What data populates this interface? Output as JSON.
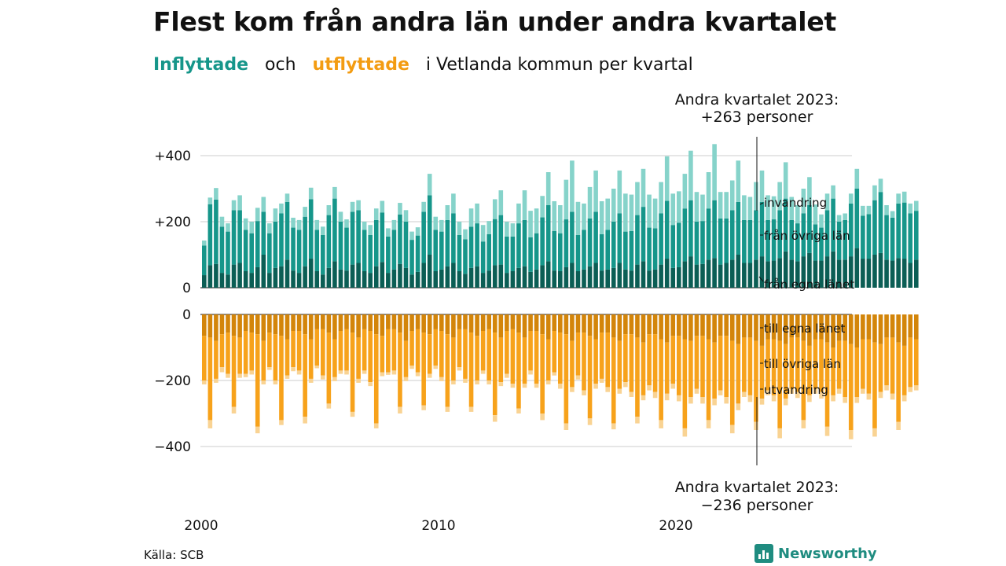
{
  "title": "Flest kom från andra län under andra kvartalet",
  "subtitle": {
    "in_label": "Inflyttade",
    "and": "och",
    "out_label": "utflyttade",
    "rest": "i Vetlanda  kommun  per  kvartal"
  },
  "annotations": {
    "top_line1": "Andra kvartalet 2023:",
    "top_line2": "+263 personer",
    "bottom_line1": "Andra kvartalet 2023:",
    "bottom_line2": "−236 personer"
  },
  "source": "Källa: SCB",
  "brand": "Newsworthy",
  "colors": {
    "in_same": "#0b5e55",
    "in_other": "#16968a",
    "in_immig": "#86d3ca",
    "out_same": "#d3850a",
    "out_other": "#f7a21b",
    "out_emig": "#f9d393",
    "grid": "#dddddd"
  },
  "chart_data": {
    "type": "bar",
    "stacked": true,
    "x_start": "2000 Q1",
    "x_ticks": [
      "2000",
      "2010",
      "2020"
    ],
    "top_axis": {
      "ticks": [
        "0",
        "+200",
        "+400"
      ],
      "ylim": [
        0,
        400
      ]
    },
    "bottom_axis": {
      "ticks": [
        "0",
        "−200",
        "−400"
      ],
      "ylim": [
        -400,
        0
      ]
    },
    "series_labels": {
      "in_immig": "invandring",
      "in_other": "från övriga län",
      "in_same": "från egna länet",
      "out_same": "till egna länet",
      "out_other": "till övriga län",
      "out_emig": "utvandring"
    },
    "inflow_same_county": [
      38,
      68,
      72,
      45,
      40,
      70,
      75,
      50,
      45,
      62,
      100,
      45,
      60,
      65,
      85,
      52,
      45,
      65,
      88,
      50,
      40,
      60,
      80,
      55,
      52,
      70,
      75,
      50,
      45,
      65,
      78,
      45,
      55,
      72,
      60,
      40,
      48,
      75,
      100,
      50,
      55,
      65,
      75,
      50,
      42,
      60,
      65,
      45,
      52,
      68,
      70,
      45,
      50,
      60,
      65,
      48,
      55,
      68,
      80,
      52,
      50,
      62,
      75,
      50,
      55,
      65,
      75,
      52,
      55,
      60,
      75,
      55,
      52,
      70,
      80,
      52,
      55,
      70,
      88,
      60,
      62,
      80,
      95,
      70,
      72,
      85,
      90,
      70,
      75,
      85,
      100,
      75,
      75,
      85,
      95,
      80,
      82,
      90,
      110,
      85,
      80,
      95,
      105,
      82,
      82,
      95,
      110,
      85,
      85,
      95,
      120,
      88,
      88,
      100,
      105,
      85,
      82,
      90,
      88,
      75,
      85
    ],
    "inflow_other_county": [
      90,
      185,
      195,
      140,
      130,
      165,
      160,
      125,
      120,
      140,
      130,
      120,
      140,
      160,
      175,
      130,
      130,
      150,
      180,
      125,
      120,
      160,
      190,
      145,
      130,
      160,
      160,
      125,
      115,
      140,
      150,
      110,
      120,
      150,
      140,
      105,
      110,
      155,
      180,
      125,
      115,
      140,
      150,
      110,
      105,
      125,
      130,
      95,
      110,
      140,
      150,
      110,
      105,
      135,
      140,
      105,
      110,
      145,
      170,
      120,
      115,
      145,
      155,
      110,
      120,
      145,
      155,
      110,
      120,
      140,
      150,
      115,
      120,
      150,
      165,
      130,
      125,
      155,
      175,
      130,
      135,
      160,
      170,
      130,
      130,
      155,
      175,
      140,
      135,
      150,
      160,
      130,
      130,
      150,
      165,
      125,
      125,
      145,
      160,
      120,
      115,
      130,
      145,
      110,
      100,
      140,
      160,
      115,
      120,
      160,
      180,
      130,
      135,
      165,
      185,
      135,
      130,
      165,
      170,
      150,
      148
    ],
    "inflow_immigration": [
      15,
      20,
      35,
      30,
      25,
      30,
      45,
      35,
      35,
      40,
      45,
      30,
      40,
      30,
      25,
      30,
      30,
      30,
      35,
      30,
      25,
      30,
      35,
      30,
      25,
      30,
      30,
      25,
      30,
      35,
      35,
      25,
      30,
      35,
      35,
      25,
      25,
      30,
      65,
      40,
      35,
      45,
      60,
      40,
      30,
      55,
      60,
      50,
      40,
      60,
      75,
      45,
      40,
      60,
      90,
      80,
      75,
      65,
      100,
      90,
      85,
      120,
      155,
      100,
      80,
      95,
      125,
      100,
      95,
      100,
      130,
      115,
      110,
      100,
      115,
      100,
      90,
      95,
      135,
      95,
      95,
      105,
      150,
      90,
      80,
      110,
      170,
      80,
      80,
      90,
      125,
      75,
      70,
      85,
      95,
      75,
      70,
      85,
      110,
      70,
      55,
      75,
      85,
      60,
      40,
      50,
      40,
      20,
      20,
      30,
      60,
      30,
      25,
      45,
      40,
      30,
      20,
      30,
      33,
      30,
      30
    ],
    "outflow_same_county": [
      -65,
      -70,
      -80,
      -60,
      -55,
      -65,
      -70,
      -50,
      -55,
      -60,
      -80,
      -55,
      -60,
      -65,
      -75,
      -50,
      -50,
      -60,
      -75,
      -45,
      -45,
      -55,
      -75,
      -50,
      -45,
      -55,
      -70,
      -45,
      -50,
      -60,
      -65,
      -45,
      -45,
      -55,
      -80,
      -50,
      -45,
      -55,
      -60,
      -45,
      -50,
      -60,
      -70,
      -45,
      -45,
      -55,
      -65,
      -50,
      -45,
      -55,
      -70,
      -50,
      -45,
      -55,
      -70,
      -50,
      -50,
      -60,
      -75,
      -50,
      -55,
      -60,
      -80,
      -55,
      -55,
      -65,
      -75,
      -55,
      -55,
      -70,
      -80,
      -60,
      -60,
      -70,
      -85,
      -60,
      -60,
      -75,
      -85,
      -65,
      -65,
      -75,
      -80,
      -65,
      -65,
      -75,
      -85,
      -65,
      -65,
      -80,
      -90,
      -70,
      -70,
      -80,
      -95,
      -75,
      -75,
      -80,
      -90,
      -70,
      -70,
      -80,
      -95,
      -75,
      -75,
      -85,
      -100,
      -80,
      -80,
      -90,
      -100,
      -75,
      -75,
      -85,
      -90,
      -70,
      -70,
      -85,
      -95,
      -70,
      -75
    ],
    "outflow_other_county": [
      -135,
      -250,
      -115,
      -100,
      -125,
      -215,
      -110,
      -130,
      -115,
      -280,
      -120,
      -105,
      -140,
      -255,
      -110,
      -110,
      -120,
      -250,
      -120,
      -110,
      -140,
      -215,
      -115,
      -120,
      -125,
      -240,
      -125,
      -125,
      -155,
      -270,
      -110,
      -130,
      -125,
      -225,
      -110,
      -105,
      -130,
      -220,
      -120,
      -110,
      -140,
      -220,
      -130,
      -115,
      -150,
      -225,
      -135,
      -120,
      -155,
      -250,
      -135,
      -130,
      -165,
      -230,
      -140,
      -120,
      -160,
      -240,
      -125,
      -125,
      -155,
      -270,
      -140,
      -130,
      -175,
      -250,
      -135,
      -140,
      -165,
      -260,
      -145,
      -145,
      -175,
      -240,
      -160,
      -155,
      -175,
      -245,
      -155,
      -145,
      -180,
      -270,
      -170,
      -160,
      -185,
      -245,
      -170,
      -165,
      -185,
      -255,
      -180,
      -165,
      -175,
      -245,
      -160,
      -155,
      -170,
      -265,
      -165,
      -155,
      -165,
      -240,
      -150,
      -150,
      -160,
      -255,
      -145,
      -145,
      -170,
      -260,
      -150,
      -150,
      -165,
      -260,
      -145,
      -145,
      -170,
      -240,
      -150,
      -150,
      -140
    ],
    "outflow_emigration": [
      -12,
      -25,
      -12,
      -15,
      -12,
      -20,
      -12,
      -10,
      -12,
      -20,
      -12,
      -8,
      -12,
      -15,
      -10,
      -12,
      -12,
      -20,
      -12,
      -8,
      -12,
      -15,
      -12,
      -10,
      -12,
      -15,
      -12,
      -10,
      -12,
      -15,
      -12,
      -8,
      -12,
      -20,
      -12,
      -10,
      -12,
      -15,
      -12,
      -10,
      -12,
      -15,
      -12,
      -10,
      -12,
      -15,
      -12,
      -10,
      -12,
      -20,
      -12,
      -12,
      -12,
      -15,
      -12,
      -12,
      -12,
      -20,
      -12,
      -10,
      -15,
      -20,
      -15,
      -12,
      -15,
      -20,
      -15,
      -12,
      -15,
      -18,
      -15,
      -15,
      -15,
      -20,
      -15,
      -15,
      -18,
      -25,
      -20,
      -15,
      -18,
      -25,
      -20,
      -15,
      -20,
      -25,
      -20,
      -15,
      -20,
      -25,
      -20,
      -15,
      -20,
      -25,
      -18,
      -15,
      -18,
      -30,
      -20,
      -15,
      -18,
      -25,
      -20,
      -15,
      -20,
      -28,
      -18,
      -15,
      -18,
      -28,
      -18,
      -15,
      -18,
      -25,
      -18,
      -15,
      -18,
      -25,
      -18,
      -15,
      -15
    ]
  }
}
